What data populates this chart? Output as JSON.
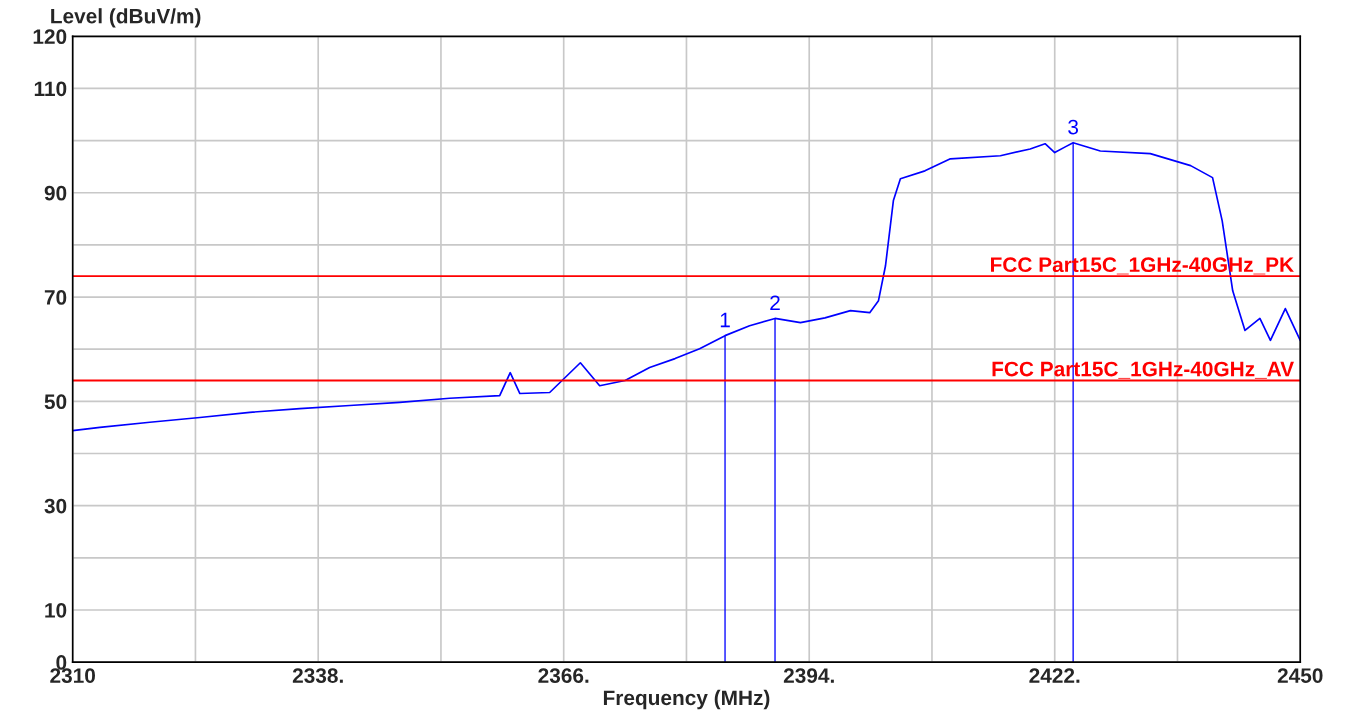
{
  "chart_data": {
    "type": "line",
    "xlabel": "Frequency (MHz)",
    "ylabel": "Level (dBuV/m)",
    "xlim": [
      2310,
      2450
    ],
    "ylim": [
      0,
      120
    ],
    "xticks": [
      2310,
      {
        "value": 2324,
        "label": null
      },
      {
        "value": 2338,
        "label": "2338."
      },
      {
        "value": 2352,
        "label": null
      },
      {
        "value": 2366,
        "label": "2366."
      },
      {
        "value": 2380,
        "label": null
      },
      {
        "value": 2394,
        "label": "2394."
      },
      {
        "value": 2408,
        "label": null
      },
      {
        "value": 2422,
        "label": "2422."
      },
      {
        "value": 2436,
        "label": null
      },
      2450
    ],
    "yticks": [
      0,
      10,
      {
        "value": 20,
        "label": null
      },
      30,
      {
        "value": 40,
        "label": null
      },
      50,
      {
        "value": 60,
        "label": null
      },
      70,
      {
        "value": 80,
        "label": null
      },
      90,
      {
        "value": 100,
        "label": null
      },
      110,
      120
    ],
    "grid": true,
    "legend": false,
    "series": [
      {
        "color": "#0000ff",
        "x": [
          2310,
          2313.1,
          2318.8,
          2324.5,
          2330.2,
          2335.9,
          2341.6,
          2347.3,
          2353,
          2358.7,
          2359.9,
          2361,
          2364.4,
          2367.9,
          2370.1,
          2373,
          2375.8,
          2378.7,
          2381.5,
          2384.4,
          2387.2,
          2390.1,
          2393,
          2395.8,
          2398.7,
          2400.9,
          2401.9,
          2402.7,
          2403.6,
          2404.4,
          2407.2,
          2410.1,
          2415.8,
          2419.2,
          2420.9,
          2422,
          2423.2,
          2424.1,
          2427.2,
          2432.9,
          2437.5,
          2440,
          2441.1,
          2442.3,
          2443.7,
          2445.4,
          2446.6,
          2448.3,
          2450
        ],
        "values": [
          44.4,
          45,
          46,
          46.9,
          47.9,
          48.6,
          49.2,
          49.8,
          50.6,
          51.1,
          55.5,
          51.5,
          51.7,
          57.4,
          53,
          54,
          56.5,
          58.2,
          60.1,
          62.6,
          64.5,
          65.9,
          65.1,
          66,
          67.4,
          67,
          69.3,
          76,
          88.5,
          92.7,
          94.2,
          96.5,
          97.1,
          98.4,
          99.4,
          97.7,
          98.8,
          99.6,
          98,
          97.5,
          95.2,
          92.9,
          84.6,
          71.2,
          63.6,
          65.9,
          61.7,
          67.8,
          61.7
        ]
      },
      {
        "type": "bar",
        "color": "#0000ff",
        "x": [
          2384.4,
          2390.1,
          2424.1
        ],
        "values": [
          62.6,
          65.9,
          99.6
        ]
      }
    ],
    "annotations": [
      {
        "text": "1",
        "x": 2384.4,
        "y": 62.6
      },
      {
        "text": "2",
        "x": 2390.1,
        "y": 65.9
      },
      {
        "text": "3",
        "x": 2424.1,
        "y": 99.6
      }
    ],
    "ref_lines": [
      {
        "axis": "y",
        "value": 74,
        "label": "FCC Part15C_1GHz-40GHz_PK",
        "color": "#ff0000"
      },
      {
        "axis": "y",
        "value": 54,
        "label": "FCC Part15C_1GHz-40GHz_AV",
        "color": "#ff0000"
      }
    ]
  }
}
